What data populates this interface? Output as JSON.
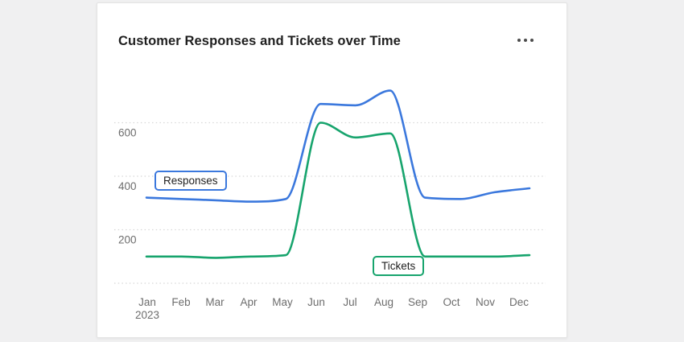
{
  "page": {
    "background_color": "#f0f0f1"
  },
  "card": {
    "title": "Customer Responses and Tickets over Time",
    "menu_icon": "ellipsis-menu-icon",
    "background_color": "#ffffff"
  },
  "chart_data": {
    "type": "line",
    "title": "Customer Responses and Tickets over Time",
    "categories": [
      "Jan",
      "Feb",
      "Mar",
      "Apr",
      "May",
      "Jun",
      "Jul",
      "Aug",
      "Sep",
      "Oct",
      "Nov",
      "Dec"
    ],
    "x_axis_sub_label": "2023",
    "y_ticks": [
      600,
      400,
      200
    ],
    "y_gridlines": [
      600,
      400,
      200,
      0
    ],
    "ylim": [
      0,
      760
    ],
    "grid": "horizontal-dotted",
    "grid_color": "#d8d8d8",
    "axis_label_color": "#6d6d6d",
    "legend_position": "inline-series-labels",
    "series": [
      {
        "name": "Responses",
        "color": "#3b78dd",
        "values": [
          320,
          315,
          310,
          305,
          315,
          670,
          665,
          720,
          320,
          315,
          340,
          355
        ]
      },
      {
        "name": "Tickets",
        "color": "#17a46d",
        "values": [
          100,
          100,
          95,
          100,
          105,
          600,
          545,
          560,
          100,
          100,
          100,
          105
        ]
      }
    ]
  }
}
